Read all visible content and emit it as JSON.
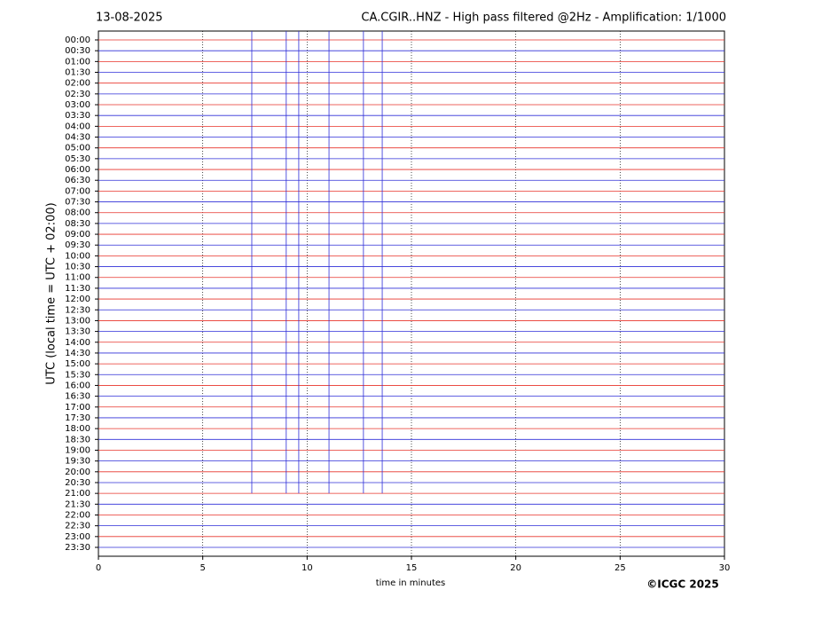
{
  "chart_data": {
    "type": "helicorder",
    "date": "13-08-2025",
    "title": "CA.CGIR..HNZ - High pass filtered @2Hz - Amplification: 1/1000",
    "ylabel": "UTC (local time = UTC + 02:00)",
    "xlabel": "time in minutes",
    "copyright": "©ICGC 2025",
    "categories": [
      "00:00",
      "00:30",
      "01:00",
      "01:30",
      "02:00",
      "02:30",
      "03:00",
      "03:30",
      "04:00",
      "04:30",
      "05:00",
      "05:30",
      "06:00",
      "06:30",
      "07:00",
      "07:30",
      "08:00",
      "08:30",
      "09:00",
      "09:30",
      "10:00",
      "10:30",
      "11:00",
      "11:30",
      "12:00",
      "12:30",
      "13:00",
      "13:30",
      "14:00",
      "14:30",
      "15:00",
      "15:30",
      "16:00",
      "16:30",
      "17:00",
      "17:30",
      "18:00",
      "18:30",
      "19:00",
      "19:30",
      "20:00",
      "20:30",
      "21:00",
      "21:30",
      "22:00",
      "22:30",
      "23:00",
      "23:30"
    ],
    "trace_colors": [
      "#e8332a",
      "#2f2fd8"
    ],
    "events": {
      "x": [
        7.35,
        9.0,
        9.6,
        11.05,
        12.7,
        13.6
      ]
    },
    "xlim": [
      0,
      30
    ],
    "xticks": [
      0,
      5,
      10,
      15,
      20,
      25,
      30
    ],
    "grid": true
  }
}
